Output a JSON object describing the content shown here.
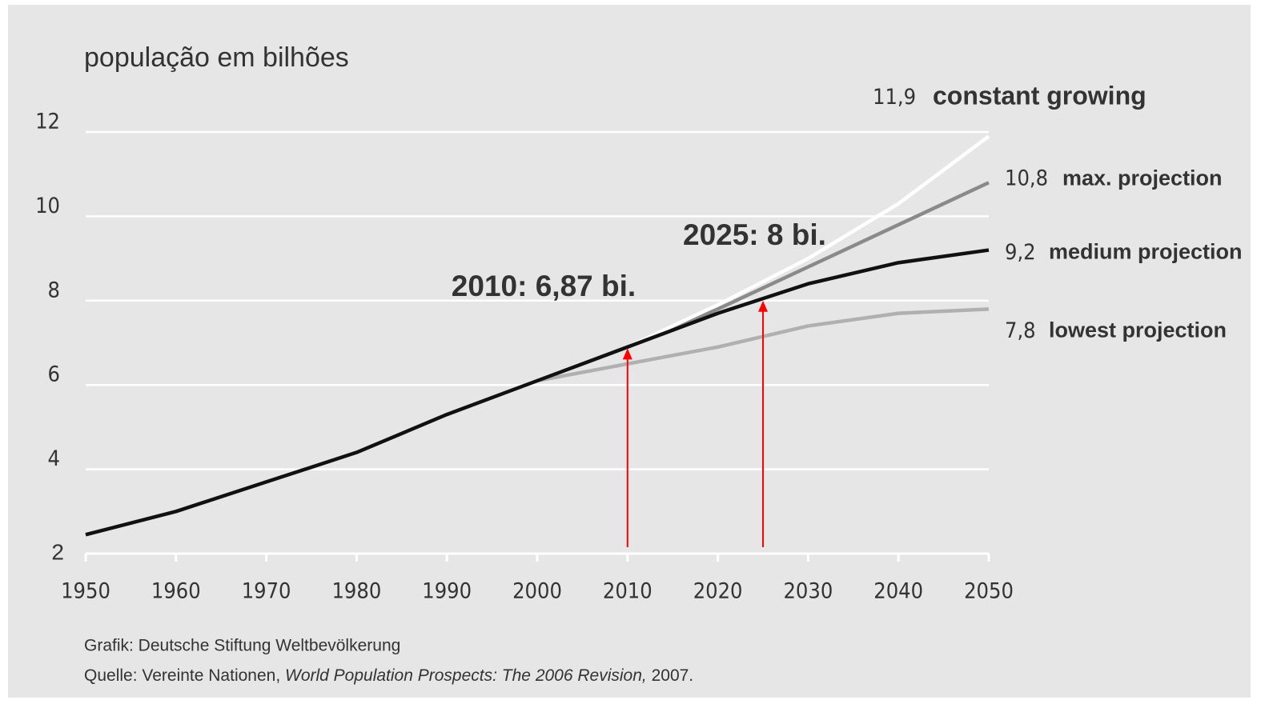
{
  "chart_data": {
    "type": "line",
    "title": "população em bilhões",
    "x": [
      1950,
      1960,
      1970,
      1980,
      1990,
      2000,
      2010,
      2020,
      2030,
      2040,
      2050
    ],
    "xlim": [
      1950,
      2050
    ],
    "xticks": [
      1950,
      1960,
      1970,
      1980,
      1990,
      2000,
      2010,
      2020,
      2030,
      2040,
      2050
    ],
    "ylim": [
      2,
      12
    ],
    "yticks": [
      2,
      4,
      6,
      8,
      10,
      12
    ],
    "grid": true,
    "series": [
      {
        "name": "constant growing",
        "color": "#ffffff",
        "values": [
          null,
          null,
          null,
          null,
          null,
          6.1,
          6.9,
          7.9,
          9.0,
          10.3,
          11.9
        ],
        "value_labels": [
          null,
          null,
          null,
          null,
          null,
          null,
          null,
          null,
          null,
          null,
          "11,9"
        ]
      },
      {
        "name": "max. projection",
        "color": "#8a8a8a",
        "values": [
          null,
          null,
          null,
          null,
          null,
          6.1,
          6.9,
          7.8,
          8.8,
          9.8,
          10.8
        ],
        "value_labels": [
          null,
          null,
          null,
          null,
          null,
          null,
          null,
          null,
          null,
          null,
          "10,8"
        ]
      },
      {
        "name": "medium projection",
        "color": "#111111",
        "values": [
          2.45,
          3.0,
          3.7,
          4.4,
          5.3,
          6.1,
          6.9,
          7.7,
          8.4,
          8.9,
          9.2
        ],
        "value_labels": [
          null,
          null,
          null,
          null,
          null,
          null,
          null,
          null,
          null,
          null,
          "9,2"
        ]
      },
      {
        "name": "lowest projection",
        "color": "#b0b0b0",
        "values": [
          null,
          null,
          null,
          null,
          null,
          6.1,
          6.5,
          6.9,
          7.4,
          7.7,
          7.8
        ],
        "value_labels": [
          null,
          null,
          null,
          null,
          null,
          null,
          null,
          null,
          null,
          null,
          "7,8"
        ]
      }
    ],
    "annotations": [
      {
        "text": "2010: 6,87 bi.",
        "x": 2010,
        "y": 6.87,
        "color": "#ff0000"
      },
      {
        "text": "2025: 8 bi.",
        "x": 2025,
        "y": 8,
        "color": "#ff0000"
      }
    ],
    "credit": "Grafik: Deutsche Stiftung Weltbevölkerung",
    "source": [
      "Quelle: Vereinte Nationen, ",
      "World Population Prospects: The 2006 Revision,",
      " 2007."
    ]
  }
}
